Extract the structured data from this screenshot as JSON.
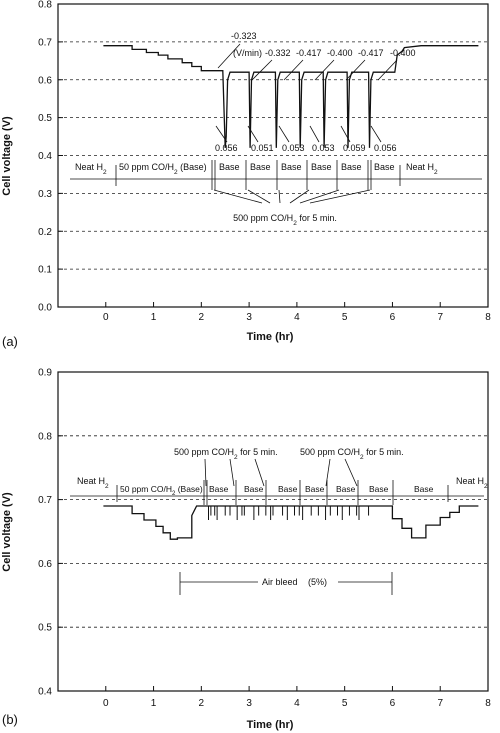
{
  "chart_data": [
    {
      "type": "line",
      "panel_label": "(a)",
      "xlabel": "Time (hr)",
      "ylabel": "Cell voltage (V)",
      "xlim": [
        -1,
        8
      ],
      "ylim": [
        0.0,
        0.8
      ],
      "x_ticks": [
        0,
        1,
        2,
        3,
        4,
        5,
        6,
        7,
        8
      ],
      "y_ticks": [
        0.0,
        0.1,
        0.2,
        0.3,
        0.4,
        0.5,
        0.6,
        0.7,
        0.8
      ],
      "y_tick_labels": [
        "0.0",
        "0.1",
        "0.2",
        "0.3",
        "0.4",
        "0.5",
        "0.6",
        "0.7",
        "0.8"
      ],
      "grid": "horizontal dashed",
      "series": [
        {
          "x": [
            -0.05,
            0.55,
            0.55,
            0.85,
            0.85,
            1.1,
            1.1,
            1.3,
            1.3,
            1.6,
            1.6,
            1.8,
            1.8,
            2.0,
            2.0,
            2.45,
            2.5,
            2.52,
            2.55,
            2.6,
            3.0,
            3.02,
            3.05,
            3.1,
            3.55,
            3.57,
            3.6,
            3.65,
            4.05,
            4.07,
            4.1,
            4.15,
            4.55,
            4.57,
            4.6,
            4.65,
            5.05,
            5.07,
            5.1,
            5.15,
            5.5,
            5.52,
            5.55,
            5.6,
            6.0,
            6.05,
            6.1,
            6.2,
            6.25,
            6.6,
            7.8
          ],
          "y": [
            0.69,
            0.69,
            0.68,
            0.68,
            0.672,
            0.672,
            0.665,
            0.665,
            0.655,
            0.655,
            0.645,
            0.645,
            0.635,
            0.635,
            0.624,
            0.624,
            0.42,
            0.45,
            0.6,
            0.62,
            0.62,
            0.42,
            0.6,
            0.62,
            0.62,
            0.42,
            0.6,
            0.62,
            0.62,
            0.42,
            0.6,
            0.62,
            0.62,
            0.42,
            0.6,
            0.62,
            0.62,
            0.42,
            0.6,
            0.62,
            0.62,
            0.42,
            0.6,
            0.62,
            0.62,
            0.62,
            0.665,
            0.675,
            0.685,
            0.69,
            0.69
          ]
        }
      ],
      "annotations": {
        "slope_first": "-0.323",
        "slope_unit": "(V/min)",
        "slopes": [
          "-0.332",
          "-0.417",
          "-0.400",
          "-0.417",
          "-0.400"
        ],
        "drops": [
          "0.056",
          "0.051",
          "0.053",
          "0.053",
          "0.059",
          "0.056"
        ],
        "segments": [
          "Neat H",
          "50 ppm CO/H",
          "(Base)",
          "Base",
          "Base",
          "Base",
          "Base",
          "Base",
          "Base",
          "Neat H"
        ],
        "pulse_label_prefix": "500 ppm CO/H",
        "pulse_label_suffix": " for 5 min.",
        "subscript_2": "2"
      }
    },
    {
      "type": "line",
      "panel_label": "(b)",
      "xlabel": "Time (hr)",
      "ylabel": "Cell voltage (V)",
      "xlim": [
        -1,
        8
      ],
      "ylim": [
        0.4,
        0.9
      ],
      "x_ticks": [
        0,
        1,
        2,
        3,
        4,
        5,
        6,
        7,
        8
      ],
      "y_ticks": [
        0.4,
        0.5,
        0.6,
        0.7,
        0.8,
        0.9
      ],
      "y_tick_labels": [
        "0.4",
        "0.5",
        "0.6",
        "0.7",
        "0.8",
        "0.9"
      ],
      "grid": "horizontal dashed",
      "series": [
        {
          "x": [
            -0.05,
            0.55,
            0.55,
            0.8,
            0.8,
            1.05,
            1.05,
            1.2,
            1.2,
            1.35,
            1.35,
            1.5,
            1.5,
            1.8,
            1.8,
            1.9,
            6.0,
            6.0,
            6.2,
            6.2,
            6.4,
            6.4,
            6.7,
            6.7,
            7.0,
            7.0,
            7.2,
            7.2,
            7.4,
            7.4,
            7.8
          ],
          "y": [
            0.69,
            0.69,
            0.678,
            0.678,
            0.668,
            0.668,
            0.658,
            0.658,
            0.648,
            0.648,
            0.638,
            0.638,
            0.64,
            0.64,
            0.675,
            0.69,
            0.69,
            0.67,
            0.67,
            0.655,
            0.655,
            0.64,
            0.64,
            0.66,
            0.66,
            0.672,
            0.672,
            0.68,
            0.68,
            0.69,
            0.69
          ]
        }
      ],
      "annotations": {
        "pulse_labels": [
          "500 ppm CO/H",
          "500 ppm CO/H"
        ],
        "pulse_suffix": " for 5 min.",
        "subscript_2": "2",
        "segments": [
          "Neat H",
          "50 ppm CO/H",
          "(Base)",
          "Base",
          "Base",
          "Base",
          "Base",
          "Base",
          "Base",
          "Base",
          "Neat H"
        ],
        "air_bleed": "Air bleed",
        "air_bleed_pct": "(5%)"
      }
    }
  ]
}
